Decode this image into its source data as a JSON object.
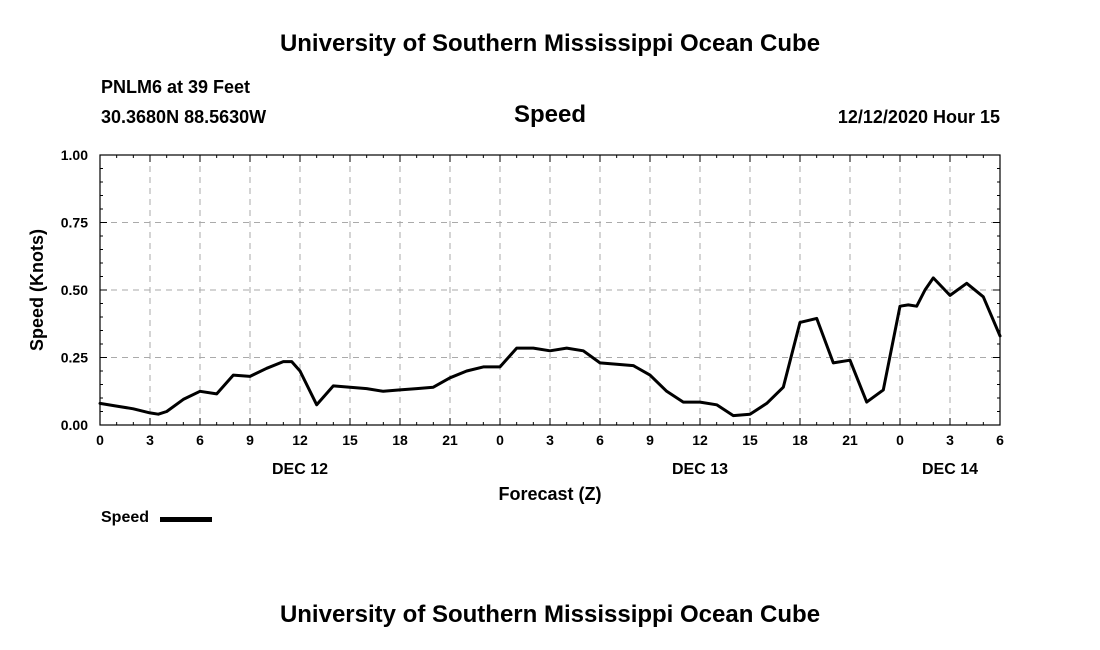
{
  "header": {
    "title_top": "University of Southern Mississippi Ocean Cube",
    "station": "PNLM6 at 39 Feet",
    "coords": "30.3680N 88.5630W",
    "variable": "Speed",
    "datetime": "12/12/2020 Hour 15",
    "title_bottom": "University of Southern Mississippi Ocean Cube"
  },
  "legend": {
    "label": "Speed"
  },
  "colors": {
    "line": "#000000",
    "grid": "#aaaaaa"
  },
  "chart_data": {
    "type": "line",
    "xlabel": "Forecast (Z)",
    "ylabel": "Speed (Knots)",
    "ylim": [
      0,
      1.0
    ],
    "yticks": [
      "0.00",
      "0.25",
      "0.50",
      "0.75",
      "1.00"
    ],
    "xlim": [
      0,
      54
    ],
    "xticks": [
      "0",
      "3",
      "6",
      "9",
      "12",
      "15",
      "18",
      "21",
      "0",
      "3",
      "6",
      "9",
      "12",
      "15",
      "18",
      "21",
      "0",
      "3",
      "6"
    ],
    "date_labels": [
      {
        "at": 12,
        "label": "DEC 12"
      },
      {
        "at": 36,
        "label": "DEC 13"
      },
      {
        "at": 51,
        "label": "DEC 14"
      }
    ],
    "grid": true,
    "legend_position": "bottom-left",
    "series": [
      {
        "name": "Speed",
        "x": [
          0,
          1,
          2,
          3,
          3.5,
          4,
          5,
          6,
          7,
          8,
          9,
          10,
          11,
          11.5,
          12,
          13,
          14,
          15,
          16,
          17,
          18,
          19,
          20,
          21,
          22,
          23,
          24,
          25,
          26,
          27,
          28,
          29,
          30,
          31,
          32,
          33,
          34,
          35,
          36,
          37,
          38,
          39,
          40,
          41,
          42,
          43,
          44,
          45,
          46,
          47,
          48,
          48.5,
          49,
          49.5,
          50,
          51,
          52,
          53,
          54
        ],
        "values": [
          0.08,
          0.07,
          0.06,
          0.045,
          0.04,
          0.05,
          0.095,
          0.125,
          0.115,
          0.185,
          0.18,
          0.21,
          0.235,
          0.235,
          0.2,
          0.075,
          0.145,
          0.14,
          0.135,
          0.125,
          0.13,
          0.135,
          0.14,
          0.175,
          0.2,
          0.215,
          0.215,
          0.285,
          0.285,
          0.275,
          0.285,
          0.275,
          0.23,
          0.225,
          0.22,
          0.185,
          0.125,
          0.085,
          0.085,
          0.075,
          0.035,
          0.04,
          0.08,
          0.14,
          0.38,
          0.395,
          0.23,
          0.24,
          0.085,
          0.13,
          0.44,
          0.445,
          0.44,
          0.5,
          0.545,
          0.48,
          0.525,
          0.475,
          0.33
        ]
      }
    ]
  }
}
